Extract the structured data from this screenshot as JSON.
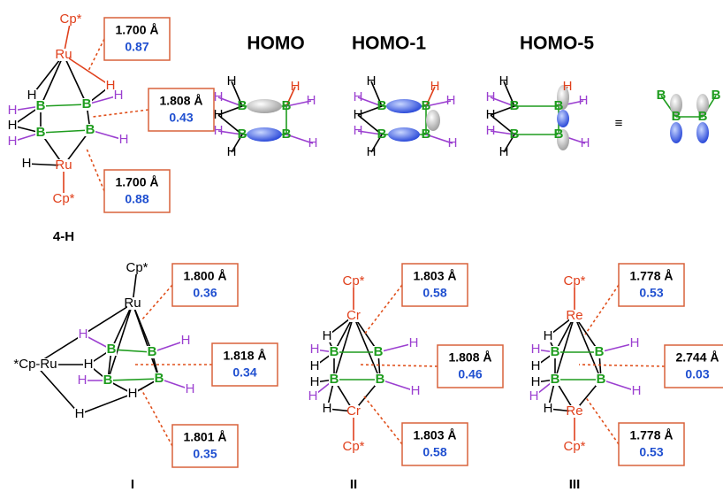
{
  "structures": [
    {
      "label": "4-H",
      "atoms": [
        "Cp*",
        "Ru",
        "H",
        "H",
        "H",
        "B",
        "B",
        "H",
        "H",
        "B",
        "B",
        "H",
        "H",
        "H",
        "Ru",
        "Cp*"
      ],
      "boxes": [
        {
          "distance": "1.700 Å",
          "index": "0.87"
        },
        {
          "distance": "1.808 Å",
          "index": "0.43"
        },
        {
          "distance": "1.700 Å",
          "index": "0.88"
        }
      ]
    },
    {
      "label": "I",
      "atoms": [
        "Cp*",
        "Ru",
        "*Cp-Ru",
        "H",
        "B",
        "B",
        "H",
        "H",
        "H",
        "B",
        "B",
        "H",
        "H",
        "H"
      ],
      "boxes": [
        {
          "distance": "1.800 Å",
          "index": "0.36"
        },
        {
          "distance": "1.818 Å",
          "index": "0.34"
        },
        {
          "distance": "1.801 Å",
          "index": "0.35"
        }
      ]
    },
    {
      "label": "II",
      "atoms": [
        "Cp*",
        "Cr",
        "H",
        "H",
        "B",
        "B",
        "H",
        "H",
        "H",
        "B",
        "B",
        "H",
        "H",
        "H",
        "Cr",
        "Cp*"
      ],
      "boxes": [
        {
          "distance": "1.803 Å",
          "index": "0.58"
        },
        {
          "distance": "1.808 Å",
          "index": "0.46"
        },
        {
          "distance": "1.803 Å",
          "index": "0.58"
        }
      ]
    },
    {
      "label": "III",
      "atoms": [
        "Cp*",
        "Re",
        "H",
        "H",
        "B",
        "B",
        "H",
        "H",
        "H",
        "B",
        "B",
        "H",
        "H",
        "H",
        "Re",
        "Cp*"
      ],
      "boxes": [
        {
          "distance": "1.778 Å",
          "index": "0.53"
        },
        {
          "distance": "2.744 Å",
          "index": "0.03"
        },
        {
          "distance": "1.778 Å",
          "index": "0.53"
        }
      ]
    }
  ],
  "orbitals": [
    {
      "title": "HOMO",
      "atoms": [
        "H",
        "H",
        "B",
        "B",
        "H",
        "H",
        "H",
        "H",
        "B",
        "B",
        "H",
        "H"
      ]
    },
    {
      "title": "HOMO-1",
      "atoms": [
        "H",
        "H",
        "B",
        "B",
        "H",
        "H",
        "H",
        "H",
        "B",
        "B",
        "H",
        "H"
      ]
    },
    {
      "title": "HOMO-5",
      "atoms": [
        "H",
        "H",
        "B",
        "B",
        "H",
        "H",
        "H",
        "H",
        "B",
        "B",
        "H",
        "H"
      ],
      "equivalence": "≡",
      "side_atoms": [
        "B",
        "B",
        "B",
        "B"
      ]
    }
  ]
}
